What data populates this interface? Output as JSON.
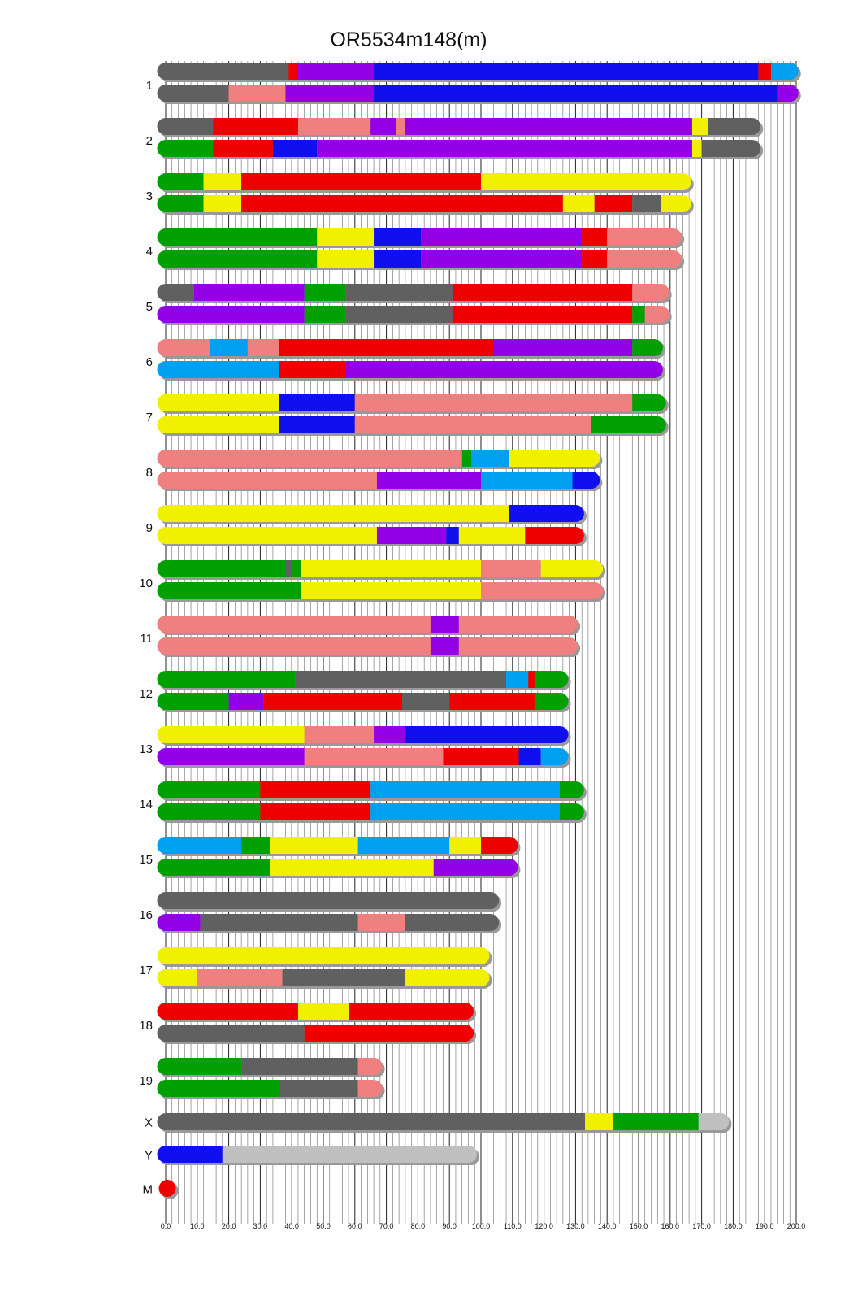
{
  "chart_data": {
    "type": "karyotype",
    "title": "OR5534m148(m)",
    "xlabel": "",
    "ylabel": "",
    "xlim": [
      0,
      200
    ],
    "grid": true,
    "tick_labels": [
      "0.0",
      "10.0",
      "20.0",
      "30.0",
      "40.0",
      "50.0",
      "60.0",
      "70.0",
      "80.0",
      "90.0",
      "100.0",
      "110.0",
      "120.0",
      "130.0",
      "140.0",
      "150.0",
      "160.0",
      "170.0",
      "180.0",
      "190.0",
      "200.0"
    ],
    "colors": {
      "gray": "#606060",
      "red": "#ee0000",
      "purple": "#9400e6",
      "blue": "#1010ee",
      "lightblue": "#00a0f0",
      "salmon": "#f08080",
      "green": "#00a000",
      "yellow": "#f0f000",
      "lightgray": "#c0c0c0"
    },
    "chromosomes": [
      {
        "name": "1",
        "haplotypes": [
          [
            [
              0,
              39,
              "gray"
            ],
            [
              39,
              42,
              "red"
            ],
            [
              42,
              66,
              "purple"
            ],
            [
              66,
              188,
              "blue"
            ],
            [
              188,
              192,
              "red"
            ],
            [
              192,
              198,
              "lightblue"
            ]
          ],
          [
            [
              0,
              20,
              "gray"
            ],
            [
              20,
              38,
              "salmon"
            ],
            [
              38,
              66,
              "purple"
            ],
            [
              66,
              194,
              "blue"
            ],
            [
              194,
              198,
              "purple"
            ]
          ]
        ]
      },
      {
        "name": "2",
        "haplotypes": [
          [
            [
              0,
              15,
              "gray"
            ],
            [
              15,
              42,
              "red"
            ],
            [
              42,
              65,
              "salmon"
            ],
            [
              65,
              73,
              "purple"
            ],
            [
              73,
              76,
              "salmon"
            ],
            [
              76,
              167,
              "purple"
            ],
            [
              167,
              172,
              "yellow"
            ],
            [
              172,
              186,
              "gray"
            ]
          ],
          [
            [
              0,
              15,
              "green"
            ],
            [
              15,
              34,
              "red"
            ],
            [
              34,
              48,
              "blue"
            ],
            [
              48,
              167,
              "purple"
            ],
            [
              167,
              170,
              "yellow"
            ],
            [
              170,
              186,
              "gray"
            ]
          ]
        ]
      },
      {
        "name": "3",
        "haplotypes": [
          [
            [
              0,
              12,
              "green"
            ],
            [
              12,
              24,
              "yellow"
            ],
            [
              24,
              100,
              "red"
            ],
            [
              100,
              164,
              "yellow"
            ]
          ],
          [
            [
              0,
              12,
              "green"
            ],
            [
              12,
              24,
              "yellow"
            ],
            [
              24,
              126,
              "red"
            ],
            [
              126,
              136,
              "yellow"
            ],
            [
              136,
              148,
              "red"
            ],
            [
              148,
              157,
              "gray"
            ],
            [
              157,
              164,
              "yellow"
            ]
          ]
        ]
      },
      {
        "name": "4",
        "haplotypes": [
          [
            [
              0,
              48,
              "green"
            ],
            [
              48,
              66,
              "yellow"
            ],
            [
              66,
              81,
              "blue"
            ],
            [
              81,
              132,
              "purple"
            ],
            [
              132,
              140,
              "red"
            ],
            [
              140,
              161,
              "salmon"
            ]
          ],
          [
            [
              0,
              48,
              "green"
            ],
            [
              48,
              66,
              "yellow"
            ],
            [
              66,
              81,
              "blue"
            ],
            [
              81,
              132,
              "purple"
            ],
            [
              132,
              140,
              "red"
            ],
            [
              140,
              161,
              "salmon"
            ]
          ]
        ]
      },
      {
        "name": "5",
        "haplotypes": [
          [
            [
              0,
              9,
              "gray"
            ],
            [
              9,
              44,
              "purple"
            ],
            [
              44,
              57,
              "green"
            ],
            [
              57,
              91,
              "gray"
            ],
            [
              91,
              148,
              "red"
            ],
            [
              148,
              157,
              "salmon"
            ]
          ],
          [
            [
              0,
              44,
              "purple"
            ],
            [
              44,
              57,
              "green"
            ],
            [
              57,
              91,
              "gray"
            ],
            [
              91,
              148,
              "red"
            ],
            [
              148,
              152,
              "green"
            ],
            [
              152,
              157,
              "salmon"
            ]
          ]
        ]
      },
      {
        "name": "6",
        "haplotypes": [
          [
            [
              0,
              14,
              "salmon"
            ],
            [
              14,
              26,
              "lightblue"
            ],
            [
              26,
              36,
              "salmon"
            ],
            [
              36,
              104,
              "red"
            ],
            [
              104,
              148,
              "purple"
            ],
            [
              148,
              155,
              "green"
            ]
          ],
          [
            [
              0,
              36,
              "lightblue"
            ],
            [
              36,
              57,
              "red"
            ],
            [
              57,
              155,
              "purple"
            ]
          ]
        ]
      },
      {
        "name": "7",
        "haplotypes": [
          [
            [
              0,
              36,
              "yellow"
            ],
            [
              36,
              60,
              "blue"
            ],
            [
              60,
              148,
              "salmon"
            ],
            [
              148,
              156,
              "green"
            ]
          ],
          [
            [
              0,
              36,
              "yellow"
            ],
            [
              36,
              60,
              "blue"
            ],
            [
              60,
              135,
              "salmon"
            ],
            [
              135,
              156,
              "green"
            ]
          ]
        ]
      },
      {
        "name": "8",
        "haplotypes": [
          [
            [
              0,
              94,
              "salmon"
            ],
            [
              94,
              97,
              "green"
            ],
            [
              97,
              109,
              "lightblue"
            ],
            [
              109,
              135,
              "yellow"
            ]
          ],
          [
            [
              0,
              67,
              "salmon"
            ],
            [
              67,
              100,
              "purple"
            ],
            [
              100,
              129,
              "lightblue"
            ],
            [
              129,
              135,
              "blue"
            ]
          ]
        ]
      },
      {
        "name": "9",
        "haplotypes": [
          [
            [
              0,
              109,
              "yellow"
            ],
            [
              109,
              130,
              "blue"
            ]
          ],
          [
            [
              0,
              67,
              "yellow"
            ],
            [
              67,
              89,
              "purple"
            ],
            [
              89,
              93,
              "blue"
            ],
            [
              93,
              114,
              "yellow"
            ],
            [
              114,
              130,
              "red"
            ]
          ]
        ]
      },
      {
        "name": "10",
        "haplotypes": [
          [
            [
              0,
              38,
              "green"
            ],
            [
              38,
              40,
              "gray"
            ],
            [
              40,
              43,
              "green"
            ],
            [
              43,
              100,
              "yellow"
            ],
            [
              100,
              119,
              "salmon"
            ],
            [
              119,
              136,
              "yellow"
            ]
          ],
          [
            [
              0,
              43,
              "green"
            ],
            [
              43,
              100,
              "yellow"
            ],
            [
              100,
              136,
              "salmon"
            ]
          ]
        ]
      },
      {
        "name": "11",
        "haplotypes": [
          [
            [
              0,
              84,
              "salmon"
            ],
            [
              84,
              93,
              "purple"
            ],
            [
              93,
              128,
              "salmon"
            ]
          ],
          [
            [
              0,
              84,
              "salmon"
            ],
            [
              84,
              93,
              "purple"
            ],
            [
              93,
              128,
              "salmon"
            ]
          ]
        ]
      },
      {
        "name": "12",
        "haplotypes": [
          [
            [
              0,
              41,
              "green"
            ],
            [
              41,
              108,
              "gray"
            ],
            [
              108,
              115,
              "lightblue"
            ],
            [
              115,
              117,
              "red"
            ],
            [
              117,
              125,
              "green"
            ]
          ],
          [
            [
              0,
              20,
              "green"
            ],
            [
              20,
              31,
              "purple"
            ],
            [
              31,
              75,
              "red"
            ],
            [
              75,
              90,
              "gray"
            ],
            [
              90,
              117,
              "red"
            ],
            [
              117,
              125,
              "green"
            ]
          ]
        ]
      },
      {
        "name": "13",
        "haplotypes": [
          [
            [
              0,
              44,
              "yellow"
            ],
            [
              44,
              66,
              "salmon"
            ],
            [
              66,
              76,
              "purple"
            ],
            [
              76,
              125,
              "blue"
            ]
          ],
          [
            [
              0,
              44,
              "purple"
            ],
            [
              44,
              88,
              "salmon"
            ],
            [
              88,
              112,
              "red"
            ],
            [
              112,
              119,
              "blue"
            ],
            [
              119,
              125,
              "lightblue"
            ]
          ]
        ]
      },
      {
        "name": "14",
        "haplotypes": [
          [
            [
              0,
              30,
              "green"
            ],
            [
              30,
              65,
              "red"
            ],
            [
              65,
              125,
              "lightblue"
            ],
            [
              125,
              130,
              "green"
            ]
          ],
          [
            [
              0,
              30,
              "green"
            ],
            [
              30,
              65,
              "red"
            ],
            [
              65,
              125,
              "lightblue"
            ],
            [
              125,
              130,
              "green"
            ]
          ]
        ]
      },
      {
        "name": "15",
        "haplotypes": [
          [
            [
              0,
              24,
              "lightblue"
            ],
            [
              24,
              33,
              "green"
            ],
            [
              33,
              61,
              "yellow"
            ],
            [
              61,
              90,
              "lightblue"
            ],
            [
              90,
              100,
              "yellow"
            ],
            [
              100,
              109,
              "red"
            ]
          ],
          [
            [
              0,
              33,
              "green"
            ],
            [
              33,
              85,
              "yellow"
            ],
            [
              85,
              109,
              "purple"
            ]
          ]
        ]
      },
      {
        "name": "16",
        "haplotypes": [
          [
            [
              0,
              103,
              "gray"
            ]
          ],
          [
            [
              0,
              11,
              "purple"
            ],
            [
              11,
              61,
              "gray"
            ],
            [
              61,
              76,
              "salmon"
            ],
            [
              76,
              103,
              "gray"
            ]
          ]
        ]
      },
      {
        "name": "17",
        "haplotypes": [
          [
            [
              0,
              100,
              "yellow"
            ]
          ],
          [
            [
              0,
              10,
              "yellow"
            ],
            [
              10,
              37,
              "salmon"
            ],
            [
              37,
              76,
              "gray"
            ],
            [
              76,
              100,
              "yellow"
            ]
          ]
        ]
      },
      {
        "name": "18",
        "haplotypes": [
          [
            [
              0,
              42,
              "red"
            ],
            [
              42,
              58,
              "yellow"
            ],
            [
              58,
              95,
              "red"
            ]
          ],
          [
            [
              0,
              44,
              "gray"
            ],
            [
              44,
              95,
              "red"
            ]
          ]
        ]
      },
      {
        "name": "19",
        "haplotypes": [
          [
            [
              0,
              24,
              "green"
            ],
            [
              24,
              61,
              "gray"
            ],
            [
              61,
              66,
              "salmon"
            ]
          ],
          [
            [
              0,
              36,
              "green"
            ],
            [
              36,
              61,
              "gray"
            ],
            [
              61,
              66,
              "salmon"
            ]
          ]
        ]
      },
      {
        "name": "X",
        "haplotypes": [
          [
            [
              0,
              133,
              "gray"
            ],
            [
              133,
              142,
              "yellow"
            ],
            [
              142,
              169,
              "green"
            ],
            [
              169,
              176,
              "lightgray"
            ]
          ]
        ]
      },
      {
        "name": "Y",
        "haplotypes": [
          [
            [
              0,
              18,
              "blue"
            ],
            [
              18,
              96,
              "lightgray"
            ]
          ]
        ]
      },
      {
        "name": "M",
        "haplotypes": [
          [
            [
              0,
              0.1,
              "red"
            ]
          ]
        ]
      }
    ]
  }
}
